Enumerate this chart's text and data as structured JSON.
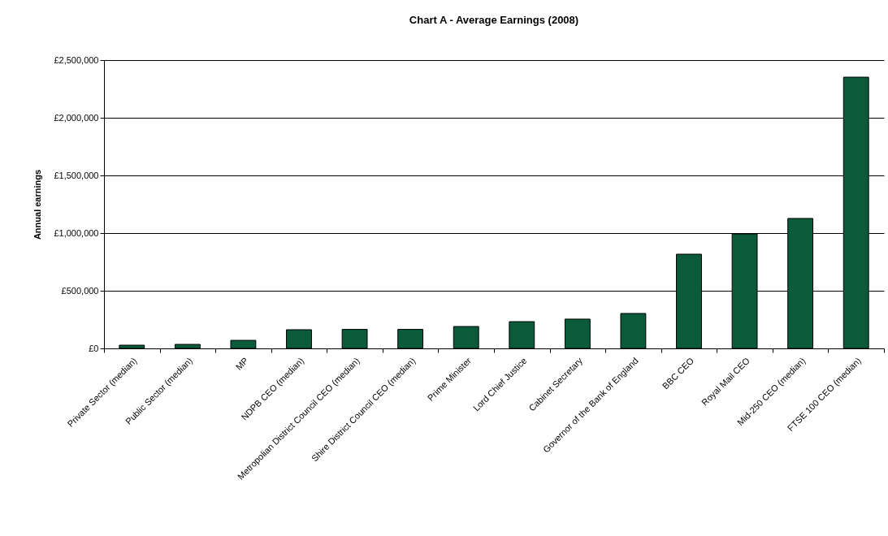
{
  "chart_data": {
    "type": "bar",
    "title": "Chart A - Average Earnings (2008)",
    "ylabel": "Annual earnings",
    "categories": [
      "Private Sector (median)",
      "Public Sector (median)",
      "MP",
      "NDPB CEO (median)",
      "Metropolian District Council CEO (median)",
      "Shire District Council CEO (median)",
      "Prime Minister",
      "Lord Chief Justice",
      "Cabinet Secretary",
      "Governor of the Bank of England",
      "BBC CEO",
      "Royal Mail CEO",
      "Mid-250 CEO (median)",
      "FTSE 100 CEO (median)"
    ],
    "values": [
      28000,
      35000,
      70000,
      162000,
      165000,
      165000,
      190000,
      232000,
      254000,
      303000,
      817000,
      993000,
      1127000,
      2352000
    ],
    "color": "#0b5a3a",
    "ylim": [
      0,
      2500000
    ],
    "yticks": [
      {
        "value": 0,
        "label": "£0"
      },
      {
        "value": 500000,
        "label": "£500,000"
      },
      {
        "value": 1000000,
        "label": "£1,000,000"
      },
      {
        "value": 1500000,
        "label": "£1,500,000"
      },
      {
        "value": 2000000,
        "label": "£2,000,000"
      },
      {
        "value": 2500000,
        "label": "£2,500,000"
      }
    ],
    "grid": "y"
  }
}
